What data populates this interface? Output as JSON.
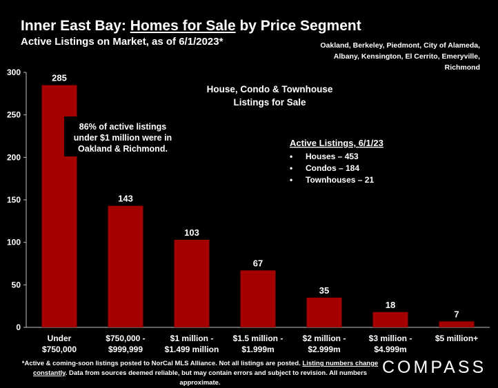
{
  "header": {
    "title_part1": "Inner East Bay: ",
    "title_underlined": "Homes for Sale",
    "title_part2": " by Price Segment",
    "subtitle": "Active Listings on Market, as of 6/1/2023*",
    "cities_line1": "Oakland, Berkeley, Piedmont, City of Alameda,",
    "cities_line2": "Albany, Kensington, El Cerrito, Emeryville, Richmond"
  },
  "chart_data": {
    "type": "bar",
    "categories": [
      [
        "Under",
        "$750,000"
      ],
      [
        "$750,000 -",
        "$999,999"
      ],
      [
        "$1 million -",
        "$1.499 million"
      ],
      [
        "$1.5 million -",
        "$1.999m"
      ],
      [
        "$2 million -",
        "$2.999m"
      ],
      [
        "$3 million -",
        "$4.999m"
      ],
      [
        "$5 million+"
      ]
    ],
    "values": [
      285,
      143,
      103,
      67,
      35,
      18,
      7
    ],
    "data_labels": [
      "285",
      "143",
      "103",
      "67",
      "35",
      "18",
      "7"
    ],
    "ylim": [
      0,
      300
    ],
    "yticks": [
      0,
      50,
      100,
      150,
      200,
      250,
      300
    ],
    "bar_color": "#A50000",
    "grid": false,
    "annotations": {
      "center_title": [
        "House, Condo & Townhouse",
        "Listings for Sale"
      ],
      "callout": [
        "86% of active listings",
        "under $1 million were in",
        "Oakland & Richmond."
      ],
      "legend_box_title": "Active Listings, 6/1/23",
      "legend_box_items": [
        "Houses – 453",
        "Condos – 184",
        "Townhouses – 21"
      ]
    }
  },
  "footer": {
    "line1_a": "*Active & coming-soon listings posted to NorCal MLS Alliance. Not all listings are posted. ",
    "line1_underlined": "Listing numbers change",
    "line2_underlined": "constantly",
    "line2_b": ". Data from sources deemed reliable, but may contain errors and subject to revision. All numbers approximate."
  },
  "brand": {
    "logo_text": "COMPASS"
  }
}
